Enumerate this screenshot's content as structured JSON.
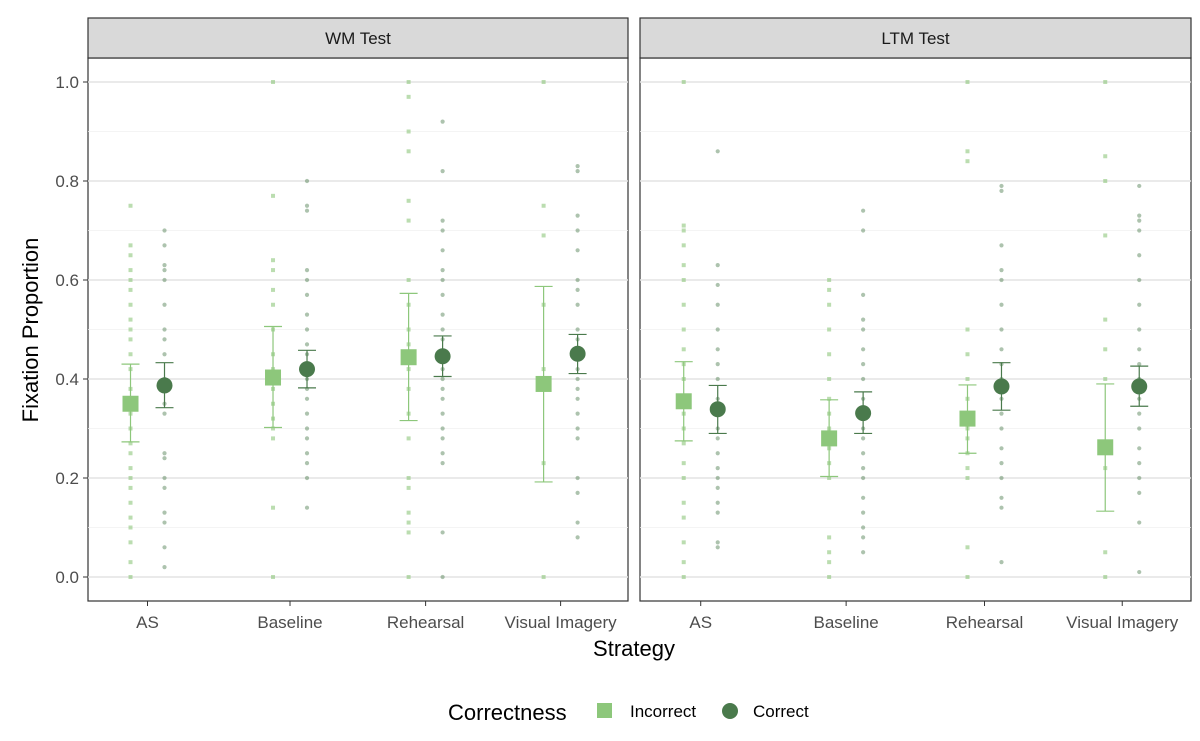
{
  "chart_data": {
    "type": "scatter",
    "title": "",
    "xlabel": "Strategy",
    "ylabel": "Fixation Proportion",
    "ylim": [
      0,
      1.05
    ],
    "yticks": [
      "0.0",
      "0.2",
      "0.4",
      "0.6",
      "0.8",
      "1.0"
    ],
    "categories": [
      "AS",
      "Baseline",
      "Rehearsal",
      "Visual Imagery"
    ],
    "legend": {
      "title": "Correctness",
      "position": "bottom",
      "entries": [
        {
          "name": "Incorrect",
          "shape": "square",
          "color": "#8dc77b"
        },
        {
          "name": "Correct",
          "shape": "circle",
          "color": "#4a7a4c"
        }
      ]
    },
    "panels": [
      {
        "label": "WM Test",
        "series": [
          {
            "name": "Incorrect",
            "means": [
              0.35,
              0.403,
              0.444,
              0.39
            ],
            "ci_low": [
              0.273,
              0.302,
              0.316,
              0.192
            ],
            "ci_high": [
              0.43,
              0.506,
              0.573,
              0.587
            ],
            "raw": [
              [
                0.0,
                0.03,
                0.07,
                0.1,
                0.12,
                0.15,
                0.18,
                0.2,
                0.22,
                0.25,
                0.27,
                0.3,
                0.33,
                0.35,
                0.38,
                0.42,
                0.45,
                0.48,
                0.5,
                0.52,
                0.55,
                0.58,
                0.6,
                0.62,
                0.65,
                0.67,
                0.75
              ],
              [
                0.0,
                0.14,
                0.28,
                0.3,
                0.32,
                0.35,
                0.38,
                0.4,
                0.42,
                0.45,
                0.5,
                0.55,
                0.58,
                0.62,
                0.64,
                0.77,
                1.0
              ],
              [
                0.0,
                0.09,
                0.11,
                0.13,
                0.18,
                0.2,
                0.28,
                0.33,
                0.38,
                0.42,
                0.47,
                0.5,
                0.55,
                0.6,
                0.72,
                0.76,
                0.86,
                0.9,
                0.97,
                1.0
              ],
              [
                0.0,
                0.23,
                0.42,
                0.55,
                0.69,
                0.75,
                1.0
              ]
            ]
          },
          {
            "name": "Correct",
            "means": [
              0.387,
              0.42,
              0.446,
              0.451
            ],
            "ci_low": [
              0.342,
              0.382,
              0.405,
              0.411
            ],
            "ci_high": [
              0.433,
              0.458,
              0.487,
              0.49
            ],
            "raw": [
              [
                0.02,
                0.06,
                0.11,
                0.13,
                0.18,
                0.2,
                0.24,
                0.25,
                0.33,
                0.35,
                0.4,
                0.45,
                0.48,
                0.5,
                0.55,
                0.6,
                0.62,
                0.63,
                0.67,
                0.7
              ],
              [
                0.14,
                0.2,
                0.23,
                0.25,
                0.28,
                0.3,
                0.33,
                0.36,
                0.38,
                0.4,
                0.42,
                0.45,
                0.47,
                0.5,
                0.53,
                0.57,
                0.6,
                0.62,
                0.74,
                0.75,
                0.8
              ],
              [
                0.0,
                0.09,
                0.23,
                0.25,
                0.28,
                0.3,
                0.33,
                0.36,
                0.38,
                0.4,
                0.42,
                0.45,
                0.48,
                0.5,
                0.53,
                0.57,
                0.6,
                0.62,
                0.66,
                0.7,
                0.72,
                0.82,
                0.92
              ],
              [
                0.08,
                0.11,
                0.17,
                0.2,
                0.28,
                0.3,
                0.33,
                0.36,
                0.38,
                0.4,
                0.42,
                0.45,
                0.48,
                0.5,
                0.55,
                0.58,
                0.6,
                0.66,
                0.7,
                0.73,
                0.82,
                0.83
              ]
            ]
          }
        ]
      },
      {
        "label": "LTM Test",
        "series": [
          {
            "name": "Incorrect",
            "means": [
              0.355,
              0.28,
              0.32,
              0.262
            ],
            "ci_low": [
              0.275,
              0.203,
              0.25,
              0.133
            ],
            "ci_high": [
              0.435,
              0.358,
              0.388,
              0.39
            ],
            "raw": [
              [
                0.0,
                0.03,
                0.07,
                0.12,
                0.15,
                0.2,
                0.23,
                0.27,
                0.3,
                0.33,
                0.36,
                0.4,
                0.43,
                0.46,
                0.5,
                0.55,
                0.6,
                0.63,
                0.67,
                0.7,
                0.71,
                1.0
              ],
              [
                0.0,
                0.03,
                0.05,
                0.08,
                0.2,
                0.23,
                0.26,
                0.3,
                0.33,
                0.36,
                0.4,
                0.45,
                0.5,
                0.55,
                0.58,
                0.6
              ],
              [
                0.0,
                0.06,
                0.2,
                0.22,
                0.25,
                0.28,
                0.3,
                0.33,
                0.36,
                0.4,
                0.45,
                0.5,
                0.84,
                0.86,
                1.0
              ],
              [
                0.0,
                0.05,
                0.22,
                0.4,
                0.46,
                0.52,
                0.69,
                0.8,
                0.85,
                1.0
              ]
            ]
          },
          {
            "name": "Correct",
            "means": [
              0.339,
              0.331,
              0.385,
              0.385
            ],
            "ci_low": [
              0.29,
              0.29,
              0.337,
              0.345
            ],
            "ci_high": [
              0.387,
              0.374,
              0.433,
              0.426
            ],
            "raw": [
              [
                0.06,
                0.07,
                0.13,
                0.15,
                0.18,
                0.2,
                0.22,
                0.25,
                0.28,
                0.3,
                0.33,
                0.36,
                0.4,
                0.43,
                0.46,
                0.5,
                0.55,
                0.59,
                0.63,
                0.86
              ],
              [
                0.05,
                0.08,
                0.1,
                0.13,
                0.16,
                0.2,
                0.22,
                0.25,
                0.28,
                0.3,
                0.33,
                0.36,
                0.4,
                0.43,
                0.46,
                0.5,
                0.52,
                0.57,
                0.7,
                0.74
              ],
              [
                0.03,
                0.14,
                0.16,
                0.2,
                0.23,
                0.26,
                0.3,
                0.33,
                0.36,
                0.4,
                0.43,
                0.46,
                0.5,
                0.55,
                0.6,
                0.62,
                0.67,
                0.78,
                0.79
              ],
              [
                0.01,
                0.11,
                0.17,
                0.2,
                0.23,
                0.26,
                0.3,
                0.33,
                0.36,
                0.4,
                0.43,
                0.46,
                0.5,
                0.55,
                0.6,
                0.65,
                0.7,
                0.72,
                0.73,
                0.79
              ]
            ]
          }
        ]
      }
    ]
  }
}
